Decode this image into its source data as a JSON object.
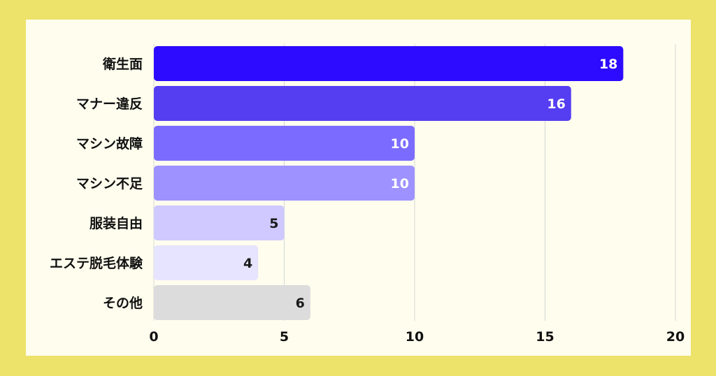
{
  "chart_data": {
    "type": "bar",
    "orientation": "horizontal",
    "categories": [
      "衛生面",
      "マナー違反",
      "マシン故障",
      "マシン不足",
      "服装自由",
      "エステ脱毛体験",
      "その他"
    ],
    "values": [
      18,
      16,
      10,
      10,
      5,
      4,
      6
    ],
    "colors": [
      "#2d0bff",
      "#553ef2",
      "#7b6cff",
      "#9d92ff",
      "#cfc9ff",
      "#e7e4ff",
      "#dcdcdc"
    ],
    "label_colors": [
      "#ffffff",
      "#ffffff",
      "#ffffff",
      "#ffffff",
      "#1a1a1a",
      "#1a1a1a",
      "#1a1a1a"
    ],
    "xlim": [
      0,
      20
    ],
    "xticks": [
      0,
      5,
      10,
      15,
      20
    ],
    "grid": true,
    "title": "",
    "xlabel": "",
    "ylabel": ""
  },
  "colors": {
    "outer_background": "#ede26a",
    "panel_background": "#fefdee",
    "gridline": "#d6d6d6"
  }
}
